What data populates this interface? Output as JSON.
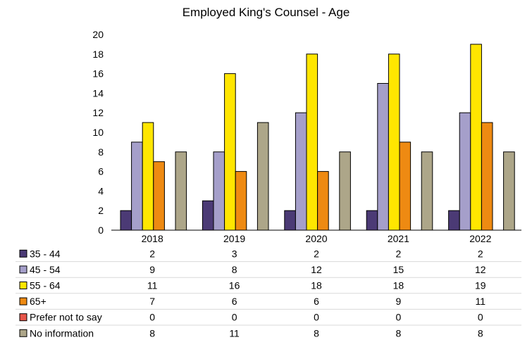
{
  "chart_data": {
    "type": "bar",
    "title": "Employed King's Counsel - Age",
    "xlabel": "",
    "ylabel": "",
    "ylim": [
      0,
      20
    ],
    "yticks": [
      0,
      2,
      4,
      6,
      8,
      10,
      12,
      14,
      16,
      18,
      20
    ],
    "categories": [
      "2018",
      "2019",
      "2020",
      "2021",
      "2022"
    ],
    "legend_position": "data table below",
    "series": [
      {
        "name": "35 - 44",
        "color": "#4B3A75",
        "values": [
          2,
          3,
          2,
          2,
          2
        ]
      },
      {
        "name": "45 - 54",
        "color": "#A59FCA",
        "values": [
          9,
          8,
          12,
          15,
          12
        ]
      },
      {
        "name": "55 - 64",
        "color": "#FFE600",
        "values": [
          11,
          16,
          18,
          18,
          19
        ]
      },
      {
        "name": "65+",
        "color": "#EE8A12",
        "values": [
          7,
          6,
          6,
          9,
          11
        ]
      },
      {
        "name": "Prefer not to say",
        "color": "#E8564A",
        "values": [
          0,
          0,
          0,
          0,
          0
        ]
      },
      {
        "name": "No information",
        "color": "#ADA689",
        "values": [
          8,
          11,
          8,
          8,
          8
        ]
      }
    ]
  }
}
